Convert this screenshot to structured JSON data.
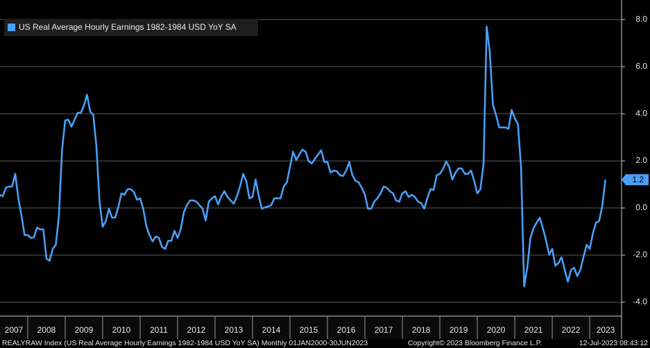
{
  "chart_data": {
    "type": "line",
    "legend_position": "upper left",
    "grid": true,
    "source": "REALYRAW Index (US Real Average Hourly Earnings 1982-1984 USD YoY SA)  Monthly 01JAN2000-30JUN2023",
    "copyright": "Copyright© 2023 Bloomberg Finance L.P.",
    "timestamp": "12-Jul-2023 08:43:12",
    "xlim": [
      2007.26,
      2023.85
    ],
    "xticks": [
      2007,
      2008,
      2009,
      2010,
      2011,
      2012,
      2013,
      2014,
      2015,
      2016,
      2017,
      2018,
      2019,
      2020,
      2021,
      2022,
      2023
    ],
    "ylim": [
      -4.59,
      8.83
    ],
    "yticks": [
      {
        "value": -4,
        "label": "-4.0"
      },
      {
        "value": -2,
        "label": "-2.0"
      },
      {
        "value": 0,
        "label": "0.0"
      },
      {
        "value": 2,
        "label": "2.0"
      },
      {
        "value": 4,
        "label": "4.0"
      },
      {
        "value": 6,
        "label": "6.0"
      },
      {
        "value": 8,
        "label": "8.0"
      }
    ],
    "x": [
      2007.25,
      2007.333,
      2007.417,
      2007.5,
      2007.583,
      2007.667,
      2007.75,
      2007.833,
      2007.917,
      2008,
      2008.083,
      2008.167,
      2008.25,
      2008.333,
      2008.417,
      2008.5,
      2008.583,
      2008.667,
      2008.75,
      2008.833,
      2008.917,
      2009,
      2009.083,
      2009.167,
      2009.25,
      2009.333,
      2009.417,
      2009.5,
      2009.583,
      2009.667,
      2009.75,
      2009.833,
      2009.917,
      2010,
      2010.083,
      2010.167,
      2010.25,
      2010.333,
      2010.417,
      2010.5,
      2010.583,
      2010.667,
      2010.75,
      2010.833,
      2010.917,
      2011,
      2011.083,
      2011.167,
      2011.25,
      2011.333,
      2011.417,
      2011.5,
      2011.583,
      2011.667,
      2011.75,
      2011.833,
      2011.917,
      2012,
      2012.083,
      2012.167,
      2012.25,
      2012.333,
      2012.417,
      2012.5,
      2012.583,
      2012.667,
      2012.75,
      2012.833,
      2012.917,
      2013,
      2013.083,
      2013.167,
      2013.25,
      2013.333,
      2013.417,
      2013.5,
      2013.583,
      2013.667,
      2013.75,
      2013.833,
      2013.917,
      2014,
      2014.083,
      2014.167,
      2014.25,
      2014.333,
      2014.417,
      2014.5,
      2014.583,
      2014.667,
      2014.75,
      2014.833,
      2014.917,
      2015,
      2015.083,
      2015.167,
      2015.25,
      2015.333,
      2015.417,
      2015.5,
      2015.583,
      2015.667,
      2015.75,
      2015.833,
      2015.917,
      2016,
      2016.083,
      2016.167,
      2016.25,
      2016.333,
      2016.417,
      2016.5,
      2016.583,
      2016.667,
      2016.75,
      2016.833,
      2016.917,
      2017,
      2017.083,
      2017.167,
      2017.25,
      2017.333,
      2017.417,
      2017.5,
      2017.583,
      2017.667,
      2017.75,
      2017.833,
      2017.917,
      2018,
      2018.083,
      2018.167,
      2018.25,
      2018.333,
      2018.417,
      2018.5,
      2018.583,
      2018.667,
      2018.75,
      2018.833,
      2018.917,
      2019,
      2019.083,
      2019.167,
      2019.25,
      2019.333,
      2019.417,
      2019.5,
      2019.583,
      2019.667,
      2019.75,
      2019.833,
      2019.917,
      2020,
      2020.083,
      2020.167,
      2020.25,
      2020.333,
      2020.417,
      2020.5,
      2020.583,
      2020.667,
      2020.75,
      2020.833,
      2020.917,
      2021,
      2021.083,
      2021.167,
      2021.25,
      2021.333,
      2021.417,
      2021.5,
      2021.583,
      2021.667,
      2021.75,
      2021.833,
      2021.917,
      2022,
      2022.083,
      2022.167,
      2022.25,
      2022.333,
      2022.417,
      2022.5,
      2022.583,
      2022.667,
      2022.75,
      2022.833,
      2022.917,
      2023,
      2023.083,
      2023.167,
      2023.25,
      2023.333,
      2023.417
    ],
    "series": [
      {
        "name": "US Real Average Hourly Earnings 1982-1984 USD YoY SA",
        "color": "#4a9ff5",
        "values": [
          0.56,
          0.5,
          0.86,
          0.91,
          0.91,
          1.45,
          0.41,
          -0.32,
          -1.15,
          -1.15,
          -1.27,
          -1.24,
          -0.83,
          -0.91,
          -0.91,
          -2.15,
          -2.24,
          -1.74,
          -1.56,
          -0.32,
          2.48,
          3.72,
          3.75,
          3.45,
          3.75,
          4.04,
          4.04,
          4.34,
          4.81,
          4.1,
          3.95,
          2.63,
          0.27,
          -0.8,
          -0.56,
          -0.03,
          -0.41,
          -0.41,
          0.03,
          0.62,
          0.56,
          0.8,
          0.8,
          0.68,
          0.35,
          0.41,
          -0.03,
          -0.77,
          -1.15,
          -1.42,
          -1.21,
          -1.27,
          -1.65,
          -1.74,
          -1.39,
          -1.39,
          -0.97,
          -1.27,
          -0.91,
          -0.18,
          0.12,
          0.32,
          0.32,
          0.27,
          0.12,
          -0.03,
          -0.53,
          0.27,
          0.41,
          0.5,
          0.15,
          0.5,
          0.71,
          0.47,
          0.32,
          0.18,
          0.5,
          0.91,
          1.45,
          1.15,
          0.41,
          0.47,
          1.21,
          0.5,
          -0.03,
          0.03,
          0.06,
          0.12,
          0.41,
          0.41,
          0.41,
          0.91,
          1.09,
          1.74,
          2.39,
          2.04,
          2.27,
          2.48,
          2.39,
          1.98,
          1.89,
          2.09,
          2.27,
          2.45,
          1.95,
          1.95,
          1.5,
          1.59,
          1.56,
          1.39,
          1.36,
          1.59,
          1.95,
          1.39,
          1.15,
          1.09,
          0.86,
          0.56,
          -0.03,
          -0.03,
          0.27,
          0.41,
          0.62,
          0.91,
          0.86,
          0.71,
          0.62,
          0.32,
          0.27,
          0.62,
          0.71,
          0.47,
          0.56,
          0.47,
          0.27,
          0.21,
          -0.03,
          0.41,
          0.8,
          0.77,
          1.39,
          1.45,
          1.65,
          1.98,
          1.74,
          1.21,
          1.5,
          1.68,
          1.68,
          1.45,
          1.45,
          1.59,
          1.15,
          0.62,
          0.8,
          1.89,
          7.7,
          6.61,
          4.37,
          3.95,
          3.42,
          3.42,
          3.42,
          3.36,
          4.16,
          3.81,
          3.57,
          1.74,
          -3.33,
          -2.54,
          -1.27,
          -0.86,
          -0.62,
          -0.41,
          -0.86,
          -1.36,
          -1.98,
          -1.74,
          -2.45,
          -2.33,
          -2.09,
          -2.63,
          -3.13,
          -2.63,
          -2.54,
          -2.89,
          -2.63,
          -2.09,
          -1.56,
          -1.74,
          -1.09,
          -0.62,
          -0.56,
          0.06,
          1.2
        ]
      }
    ]
  }
}
